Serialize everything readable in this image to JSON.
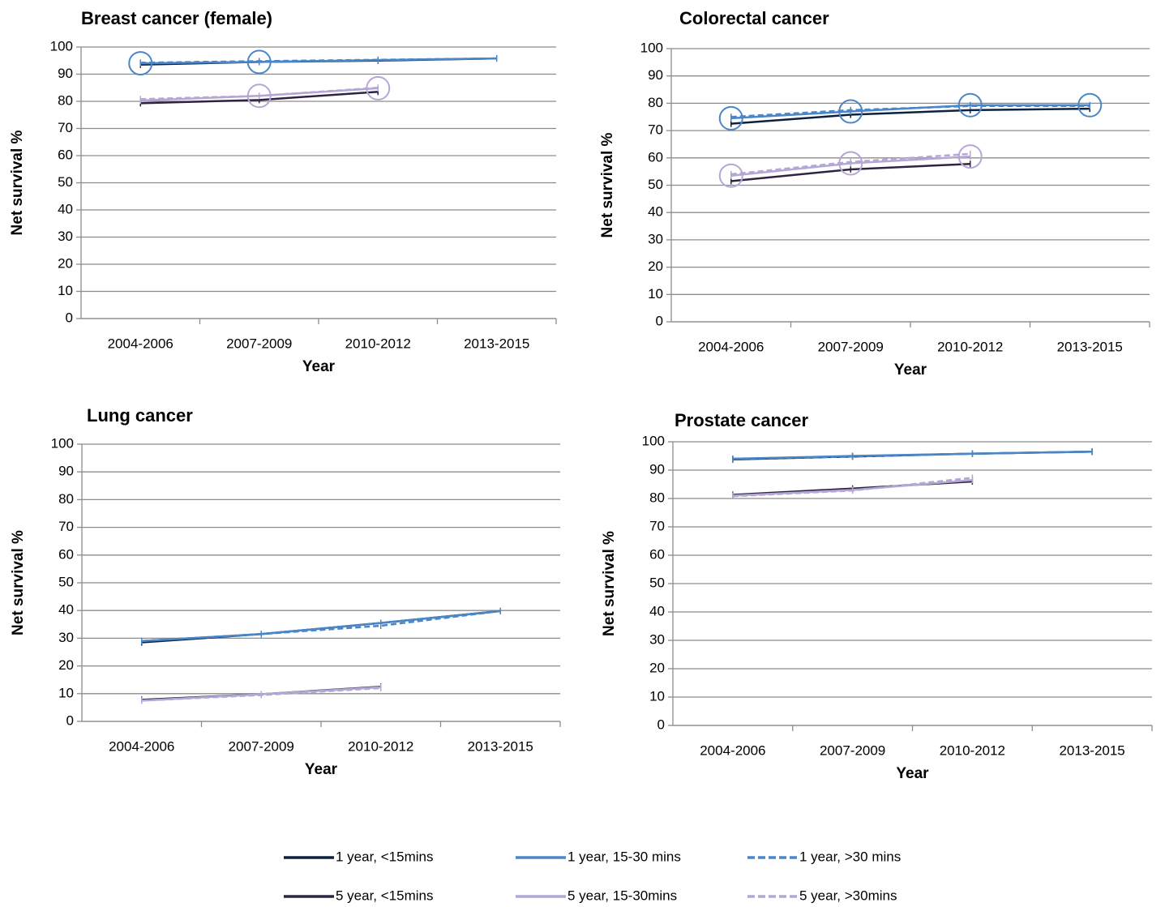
{
  "chart_data": [
    {
      "type": "line",
      "title": "Breast cancer (female)",
      "ylabel": "Net survival %",
      "xlabel": "Year",
      "categories": [
        "2004-2006",
        "2007-2009",
        "2010-2012",
        "2013-2015"
      ],
      "ylim": [
        0,
        100
      ],
      "yticks": [
        0,
        10,
        20,
        30,
        40,
        50,
        60,
        70,
        80,
        90,
        100
      ],
      "grid": true,
      "series": [
        {
          "name": "1 year, <15mins",
          "color": "#0d2240",
          "line_style": "solid",
          "values": [
            93.5,
            94.5,
            95.0,
            95.8
          ],
          "circled": [
            false,
            false,
            false,
            false
          ]
        },
        {
          "name": "1 year, 15-30 mins",
          "color": "#4a86c8",
          "line_style": "solid",
          "values": [
            94.0,
            94.5,
            95.2,
            95.8
          ],
          "circled": [
            true,
            true,
            false,
            false
          ]
        },
        {
          "name": "1 year, >30 mins",
          "color": "#4a86c8",
          "line_style": "dashed",
          "values": [
            94.2,
            94.8,
            95.3,
            95.8
          ],
          "circled": [
            false,
            false,
            false,
            false
          ]
        },
        {
          "name": "5 year, <15mins",
          "color": "#2e2442",
          "line_style": "solid",
          "values": [
            79.3,
            80.5,
            83.5,
            null
          ],
          "circled": [
            false,
            false,
            false,
            false
          ]
        },
        {
          "name": "5 year, 15-30mins",
          "color": "#b4a7d6",
          "line_style": "solid",
          "values": [
            80.3,
            82.0,
            84.8,
            null
          ],
          "circled": [
            false,
            true,
            true,
            false
          ]
        },
        {
          "name": "5 year, >30mins",
          "color": "#b4a7d6",
          "line_style": "dashed",
          "values": [
            80.8,
            82.0,
            85.0,
            null
          ],
          "circled": [
            false,
            false,
            false,
            false
          ]
        }
      ]
    },
    {
      "type": "line",
      "title": "Colorectal cancer",
      "ylabel": "Net survival %",
      "xlabel": "Year",
      "categories": [
        "2004-2006",
        "2007-2009",
        "2010-2012",
        "2013-2015"
      ],
      "ylim": [
        0,
        100
      ],
      "yticks": [
        0,
        10,
        20,
        30,
        40,
        50,
        60,
        70,
        80,
        90,
        100
      ],
      "grid": true,
      "series": [
        {
          "name": "1 year, <15mins",
          "color": "#0d2240",
          "line_style": "solid",
          "values": [
            72.5,
            75.8,
            77.5,
            78.0
          ],
          "circled": [
            false,
            false,
            false,
            false
          ]
        },
        {
          "name": "1 year, 15-30 mins",
          "color": "#4a86c8",
          "line_style": "solid",
          "values": [
            74.5,
            77.0,
            79.3,
            79.3
          ],
          "circled": [
            true,
            true,
            true,
            true
          ]
        },
        {
          "name": "1 year, >30 mins",
          "color": "#4a86c8",
          "line_style": "dashed",
          "values": [
            75.0,
            77.5,
            79.0,
            79.0
          ],
          "circled": [
            false,
            false,
            false,
            false
          ]
        },
        {
          "name": "5 year, <15mins",
          "color": "#2e2442",
          "line_style": "solid",
          "values": [
            51.5,
            55.8,
            57.8,
            null
          ],
          "circled": [
            false,
            false,
            false,
            false
          ]
        },
        {
          "name": "5 year, 15-30mins",
          "color": "#b4a7d6",
          "line_style": "solid",
          "values": [
            53.5,
            58.0,
            60.5,
            null
          ],
          "circled": [
            true,
            true,
            true,
            false
          ]
        },
        {
          "name": "5 year, >30mins",
          "color": "#b4a7d6",
          "line_style": "dashed",
          "values": [
            54.0,
            58.5,
            61.5,
            null
          ],
          "circled": [
            false,
            false,
            false,
            false
          ]
        }
      ]
    },
    {
      "type": "line",
      "title": "Lung cancer",
      "ylabel": "Net survival %",
      "xlabel": "Year",
      "categories": [
        "2004-2006",
        "2007-2009",
        "2010-2012",
        "2013-2015"
      ],
      "ylim": [
        0,
        100
      ],
      "yticks": [
        0,
        10,
        20,
        30,
        40,
        50,
        60,
        70,
        80,
        90,
        100
      ],
      "grid": true,
      "series": [
        {
          "name": "1 year, <15mins",
          "color": "#0d2240",
          "line_style": "solid",
          "values": [
            28.5,
            31.5,
            35.5,
            39.8
          ],
          "circled": [
            false,
            false,
            false,
            false
          ]
        },
        {
          "name": "1 year, 15-30 mins",
          "color": "#4a86c8",
          "line_style": "solid",
          "values": [
            29.0,
            31.5,
            35.5,
            39.8
          ],
          "circled": [
            false,
            false,
            false,
            false
          ]
        },
        {
          "name": "1 year, >30 mins",
          "color": "#4a86c8",
          "line_style": "dashed",
          "values": [
            29.0,
            31.5,
            34.5,
            39.8
          ],
          "circled": [
            false,
            false,
            false,
            false
          ]
        },
        {
          "name": "5 year, <15mins",
          "color": "#2e2442",
          "line_style": "solid",
          "values": [
            7.8,
            9.8,
            12.5,
            null
          ],
          "circled": [
            false,
            false,
            false,
            false
          ]
        },
        {
          "name": "5 year, 15-30mins",
          "color": "#b4a7d6",
          "line_style": "solid",
          "values": [
            7.5,
            9.8,
            12.3,
            null
          ],
          "circled": [
            false,
            false,
            false,
            false
          ]
        },
        {
          "name": "5 year, >30mins",
          "color": "#b4a7d6",
          "line_style": "dashed",
          "values": [
            7.5,
            9.5,
            12.0,
            null
          ],
          "circled": [
            false,
            false,
            false,
            false
          ]
        }
      ]
    },
    {
      "type": "line",
      "title": "Prostate cancer",
      "ylabel": "Net survival %",
      "xlabel": "Year",
      "categories": [
        "2004-2006",
        "2007-2009",
        "2010-2012",
        "2013-2015"
      ],
      "ylim": [
        0,
        100
      ],
      "yticks": [
        0,
        10,
        20,
        30,
        40,
        50,
        60,
        70,
        80,
        90,
        100
      ],
      "grid": true,
      "series": [
        {
          "name": "1 year, <15mins",
          "color": "#0d2240",
          "line_style": "solid",
          "values": [
            93.8,
            94.8,
            95.8,
            96.5
          ],
          "circled": [
            false,
            false,
            false,
            false
          ]
        },
        {
          "name": "1 year, 15-30 mins",
          "color": "#4a86c8",
          "line_style": "solid",
          "values": [
            94.0,
            95.0,
            95.8,
            96.5
          ],
          "circled": [
            false,
            false,
            false,
            false
          ]
        },
        {
          "name": "1 year, >30 mins",
          "color": "#4a86c8",
          "line_style": "dashed",
          "values": [
            94.0,
            94.8,
            95.8,
            96.5
          ],
          "circled": [
            false,
            false,
            false,
            false
          ]
        },
        {
          "name": "5 year, <15mins",
          "color": "#2e2442",
          "line_style": "solid",
          "values": [
            81.3,
            83.5,
            86.0,
            null
          ],
          "circled": [
            false,
            false,
            false,
            false
          ]
        },
        {
          "name": "5 year, 15-30mins",
          "color": "#b4a7d6",
          "line_style": "solid",
          "values": [
            81.0,
            83.0,
            86.5,
            null
          ],
          "circled": [
            false,
            false,
            false,
            false
          ]
        },
        {
          "name": "5 year, >30mins",
          "color": "#b4a7d6",
          "line_style": "dashed",
          "values": [
            80.8,
            82.8,
            87.3,
            null
          ],
          "circled": [
            false,
            false,
            false,
            false
          ]
        }
      ]
    }
  ]
}
